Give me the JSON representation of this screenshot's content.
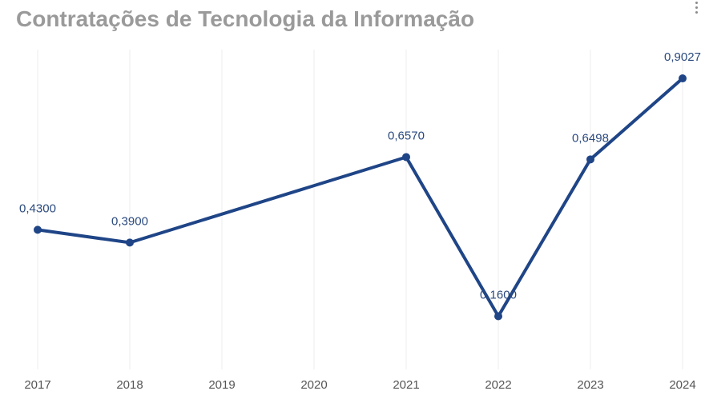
{
  "chart_data": {
    "type": "line",
    "title": "Contratações de Tecnologia da Informação",
    "categories": [
      "2017",
      "2018",
      "2019",
      "2020",
      "2021",
      "2022",
      "2023",
      "2024"
    ],
    "series": [
      {
        "points": [
          {
            "x": "2017",
            "y": 0.43,
            "label": "0,4300"
          },
          {
            "x": "2018",
            "y": 0.39,
            "label": "0,3900"
          },
          {
            "x": "2021",
            "y": 0.657,
            "label": "0,6570"
          },
          {
            "x": "2022",
            "y": 0.16,
            "label": "0,1600"
          },
          {
            "x": "2023",
            "y": 0.6498,
            "label": "0,6498"
          },
          {
            "x": "2024",
            "y": 0.9027,
            "label": "0,9027"
          }
        ]
      }
    ],
    "ylim": [
      -0.006,
      0.9927
    ],
    "y_axis_visible": false,
    "grid": "vertical",
    "legend": "none",
    "colors": {
      "line": "#1f4587",
      "grid": "#ececec",
      "title": "#9a9a9a",
      "data_label": "#2b4a7e",
      "tick_label": "#555555"
    }
  },
  "icons": {
    "menu": "more-vertical-icon"
  }
}
